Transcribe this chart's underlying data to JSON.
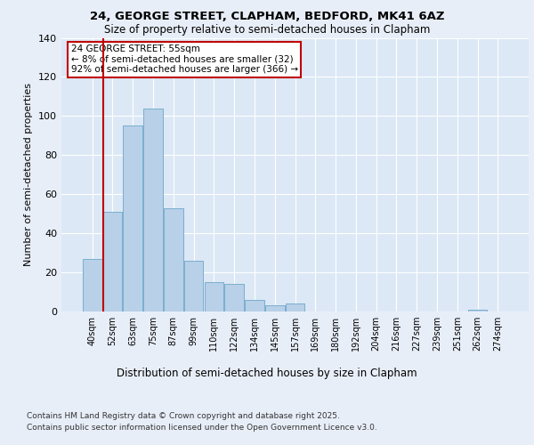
{
  "title1": "24, GEORGE STREET, CLAPHAM, BEDFORD, MK41 6AZ",
  "title2": "Size of property relative to semi-detached houses in Clapham",
  "xlabel": "Distribution of semi-detached houses by size in Clapham",
  "ylabel": "Number of semi-detached properties",
  "bins": [
    "40sqm",
    "52sqm",
    "63sqm",
    "75sqm",
    "87sqm",
    "99sqm",
    "110sqm",
    "122sqm",
    "134sqm",
    "145sqm",
    "157sqm",
    "169sqm",
    "180sqm",
    "192sqm",
    "204sqm",
    "216sqm",
    "227sqm",
    "239sqm",
    "251sqm",
    "262sqm",
    "274sqm"
  ],
  "values": [
    27,
    51,
    95,
    104,
    53,
    26,
    15,
    14,
    6,
    3,
    4,
    0,
    0,
    0,
    0,
    0,
    0,
    0,
    0,
    1,
    0
  ],
  "bar_color": "#b8d0e8",
  "bar_edge_color": "#7aaecf",
  "highlight_color": "#c00000",
  "vline_x_index": 1,
  "annotation_title": "24 GEORGE STREET: 55sqm",
  "annotation_line1": "← 8% of semi-detached houses are smaller (32)",
  "annotation_line2": "92% of semi-detached houses are larger (366) →",
  "ylim": [
    0,
    140
  ],
  "yticks": [
    0,
    20,
    40,
    60,
    80,
    100,
    120,
    140
  ],
  "footer1": "Contains HM Land Registry data © Crown copyright and database right 2025.",
  "footer2": "Contains public sector information licensed under the Open Government Licence v3.0.",
  "bg_color": "#e8eef8",
  "plot_bg_color": "#dce8f5"
}
